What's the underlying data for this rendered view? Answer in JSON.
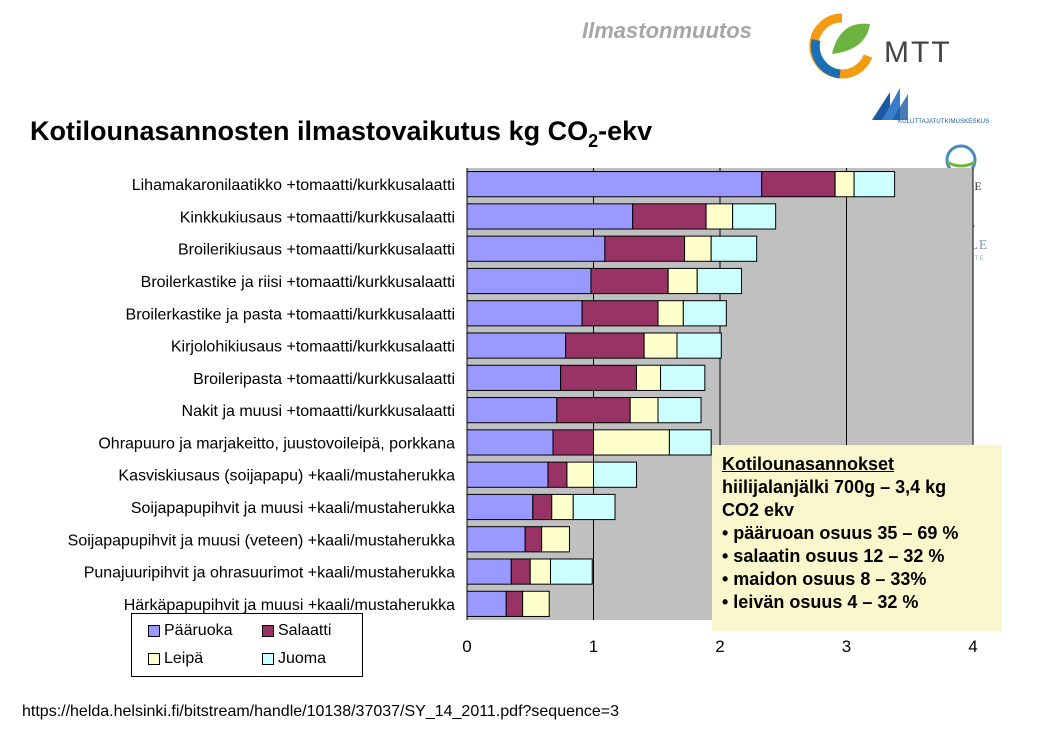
{
  "header": {
    "topic": "Ilmastonmuutos",
    "logos": {
      "mtt": "MTT",
      "kuluttaja": "KULUTTAJATUTKIMUSKESKUS",
      "syke": "SYKE",
      "thule": "THULE",
      "thule_sub": "INSTITUTE"
    }
  },
  "title": {
    "main": "Kotilounasannosten ilmastovaikutus kg CO",
    "sub": "2",
    "suffix": "-ekv"
  },
  "chart_data": {
    "type": "bar",
    "orientation": "horizontal",
    "stacked": true,
    "categories": [
      "Lihamakaronilaatikko +tomaatti/kurkkusalaatti",
      "Kinkkukiusaus +tomaatti/kurkkusalaatti",
      "Broilerikiusaus +tomaatti/kurkkusalaatti",
      "Broilerkastike ja riisi +tomaatti/kurkkusalaatti",
      "Broilerkastike ja pasta +tomaatti/kurkkusalaatti",
      "Kirjolohikiusaus +tomaatti/kurkkusalaatti",
      "Broileripasta +tomaatti/kurkkusalaatti",
      "Nakit ja muusi +tomaatti/kurkkusalaatti",
      "Ohrapuuro ja marjakeitto, juustovoileipä, porkkana",
      "Kasviskiusaus (soijapapu) +kaali/mustaherukka",
      "Soijapapupihvit ja muusi +kaali/mustaherukka",
      "Soijapapupihvit ja muusi (veteen) +kaali/mustaherukka",
      "Punajuuripihvit ja ohrasuurimot +kaali/mustaherukka",
      "Härkäpapupihvit ja muusi +kaali/mustaherukka"
    ],
    "series": [
      {
        "name": "Pääruoka",
        "color": "#9999ff",
        "values": [
          2.33,
          1.31,
          1.09,
          0.98,
          0.91,
          0.78,
          0.74,
          0.71,
          0.68,
          0.64,
          0.52,
          0.46,
          0.35,
          0.31
        ]
      },
      {
        "name": "Salaatti",
        "color": "#993366",
        "values": [
          0.58,
          0.58,
          0.63,
          0.61,
          0.6,
          0.62,
          0.6,
          0.58,
          0.32,
          0.15,
          0.15,
          0.13,
          0.15,
          0.13
        ]
      },
      {
        "name": "Leipä",
        "color": "#ffffcc",
        "values": [
          0.15,
          0.21,
          0.21,
          0.23,
          0.2,
          0.26,
          0.19,
          0.22,
          0.6,
          0.21,
          0.17,
          0.22,
          0.16,
          0.21
        ]
      },
      {
        "name": "Juoma",
        "color": "#ccffff",
        "values": [
          0.32,
          0.34,
          0.36,
          0.35,
          0.34,
          0.35,
          0.35,
          0.34,
          0.33,
          0.34,
          0.33,
          0.0,
          0.33,
          0.0
        ]
      }
    ],
    "xlim": [
      0,
      4
    ],
    "xticks": [
      "0",
      "1",
      "2",
      "3",
      "4"
    ],
    "grid": true,
    "plot_background": "#c0c0c0",
    "legend_position": "bottom-left"
  },
  "info_box": {
    "heading": "Kotilounasannokset",
    "line1": "hiilijalanjälki 700g – 3,4 kg",
    "line2": "CO2 ekv",
    "bullets": [
      "• pääruoan osuus 35 – 69 %",
      "• salaatin osuus 12 – 32 %",
      "• maidon osuus 8 – 33%",
      "• leivän osuus 4 – 32 %"
    ]
  },
  "source": "https://helda.helsinki.fi/bitstream/handle/10138/37037/SY_14_2011.pdf?sequence=3"
}
